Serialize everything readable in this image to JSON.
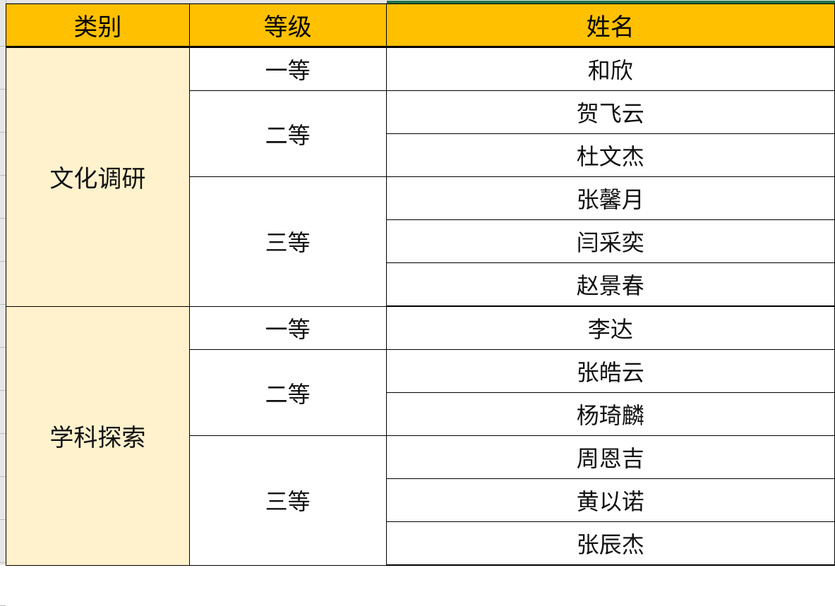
{
  "headers": [
    "类别",
    "等级",
    "姓名"
  ],
  "colors": {
    "header_bg": "#FFC000",
    "category_bg": "#FFF2CC",
    "selection": "#217346"
  },
  "groups": [
    {
      "category": "文化调研",
      "levels": [
        {
          "level": "一等",
          "names": [
            "和欣"
          ]
        },
        {
          "level": "二等",
          "names": [
            "贺飞云",
            "杜文杰"
          ]
        },
        {
          "level": "三等",
          "names": [
            "张馨月",
            "闫采奕",
            "赵景春"
          ]
        }
      ]
    },
    {
      "category": "学科探索",
      "levels": [
        {
          "level": "一等",
          "names": [
            "李达"
          ]
        },
        {
          "level": "二等",
          "names": [
            "张皓云",
            "杨琦麟"
          ]
        },
        {
          "level": "三等",
          "names": [
            "周恩吉",
            "黄以诺",
            "张辰杰"
          ]
        }
      ]
    }
  ]
}
